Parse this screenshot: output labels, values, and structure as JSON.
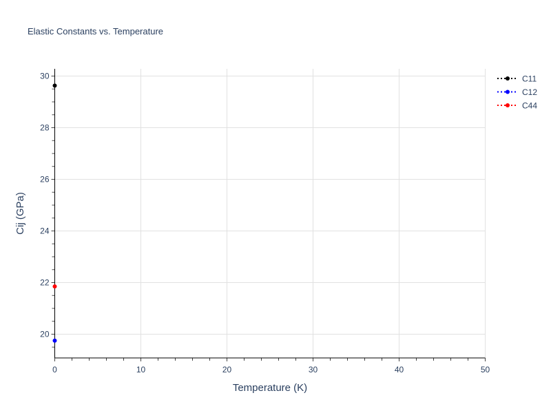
{
  "chart_data": {
    "type": "scatter",
    "title": "Elastic Constants vs. Temperature",
    "xlabel": "Temperature (K)",
    "ylabel": "Cij (GPa)",
    "xlim": [
      0,
      50
    ],
    "ylim": [
      19.08,
      30.28
    ],
    "xticks": [
      "0",
      "10",
      "20",
      "30",
      "40",
      "50"
    ],
    "yticks": [
      "20",
      "22",
      "24",
      "26",
      "28",
      "30"
    ],
    "grid": true,
    "legend_position": "top-right",
    "series": [
      {
        "name": "C11",
        "color": "#000000",
        "x": [
          0
        ],
        "y": [
          29.63
        ]
      },
      {
        "name": "C12",
        "color": "#0000ff",
        "x": [
          0
        ],
        "y": [
          19.75
        ]
      },
      {
        "name": "C44",
        "color": "#ff0000",
        "x": [
          0
        ],
        "y": [
          21.85
        ]
      }
    ]
  }
}
